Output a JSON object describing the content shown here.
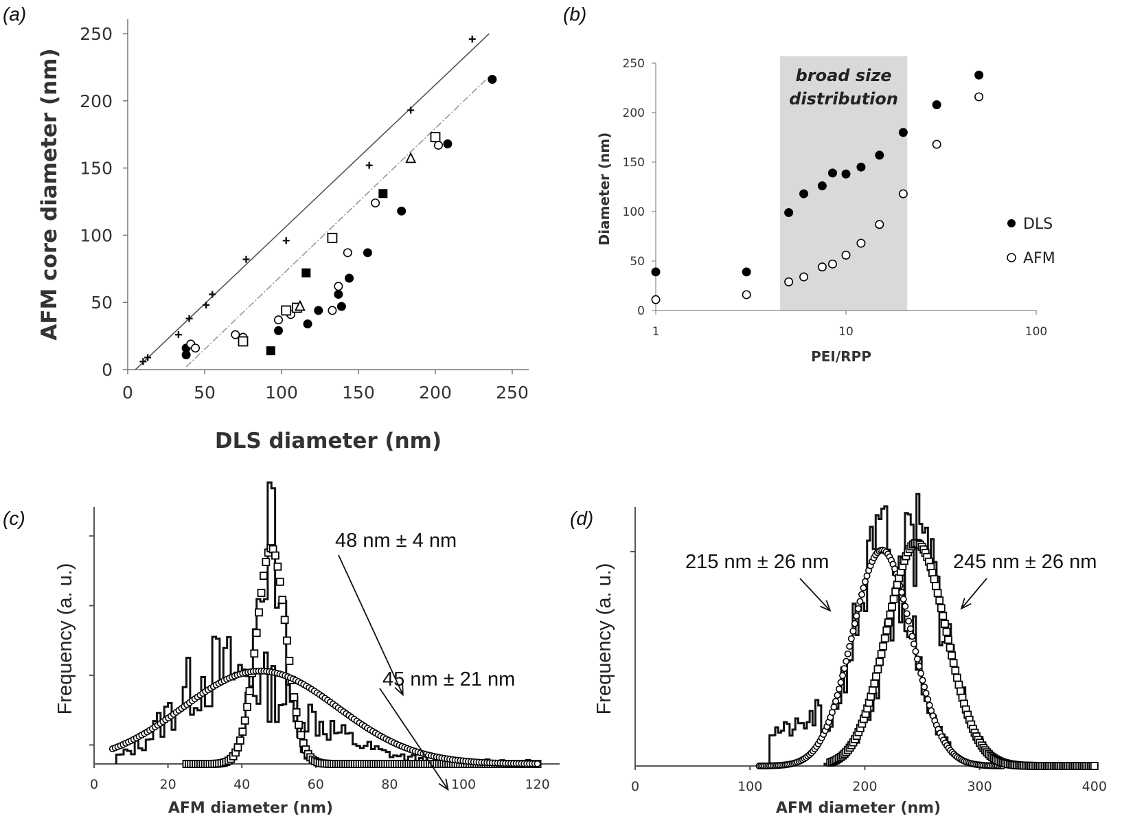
{
  "chart_data": [
    {
      "panel": "(a)",
      "type": "scatter",
      "title": "",
      "xlabel": "DLS diameter (nm)",
      "ylabel": "AFM core diameter (nm)",
      "xlim": [
        0,
        250
      ],
      "ylim": [
        0,
        250
      ],
      "xticks": [
        "0",
        "50",
        "100",
        "150",
        "200",
        "250"
      ],
      "yticks": [
        "0",
        "50",
        "100",
        "150",
        "200",
        "250"
      ],
      "grid": false,
      "lines": [
        {
          "style": "solid",
          "color": "#555555",
          "x": [
            5,
            235
          ],
          "y": [
            0,
            250
          ]
        },
        {
          "style": "dashed",
          "color": "#999999",
          "x": [
            38,
            235
          ],
          "y": [
            2,
            218
          ]
        }
      ],
      "series": [
        {
          "marker": "plus",
          "x": [
            10,
            13,
            33,
            40,
            51,
            55,
            77,
            103,
            157,
            184,
            224
          ],
          "y": [
            6,
            9,
            26,
            38,
            48,
            56,
            82,
            96,
            152,
            193,
            246
          ]
        },
        {
          "marker": "filled-circle",
          "x": [
            38,
            38,
            98,
            117,
            124,
            137,
            139,
            144,
            156,
            178,
            208,
            237
          ],
          "y": [
            11,
            16,
            29,
            34,
            44,
            56,
            47,
            68,
            87,
            118,
            168,
            216
          ]
        },
        {
          "marker": "open-circle",
          "x": [
            41,
            44,
            70,
            75,
            98,
            106,
            133,
            137,
            143,
            161,
            202
          ],
          "y": [
            19,
            16,
            26,
            24,
            37,
            41,
            44,
            62,
            87,
            124,
            167
          ]
        },
        {
          "marker": "open-square",
          "x": [
            75,
            103,
            110,
            133,
            200
          ],
          "y": [
            21,
            44,
            46,
            98,
            173
          ]
        },
        {
          "marker": "filled-square",
          "x": [
            93,
            116,
            166
          ],
          "y": [
            14,
            72,
            131
          ]
        },
        {
          "marker": "open-triangle",
          "x": [
            112,
            184
          ],
          "y": [
            47,
            157
          ]
        }
      ]
    },
    {
      "panel": "(b)",
      "type": "scatter",
      "title": "",
      "xlabel": "PEI/RPP",
      "ylabel": "Diameter (nm)",
      "xscale": "log",
      "xlim": [
        1,
        100
      ],
      "ylim": [
        0,
        250
      ],
      "xticks": [
        "1",
        "10",
        "100"
      ],
      "yticks": [
        "0",
        "50",
        "100",
        "150",
        "200",
        "250"
      ],
      "grid": false,
      "legend": "right",
      "shaded_region": {
        "x": [
          4.5,
          21
        ],
        "label_line1": "broad size",
        "label_line2": "distribution"
      },
      "series": [
        {
          "name": "DLS",
          "marker": "filled-circle",
          "x": [
            1,
            3,
            5,
            6,
            7.5,
            8.5,
            10,
            12,
            15,
            20,
            30,
            50
          ],
          "y": [
            39,
            39,
            99,
            118,
            126,
            139,
            138,
            145,
            157,
            180,
            208,
            238
          ]
        },
        {
          "name": "AFM",
          "marker": "open-circle",
          "x": [
            1,
            3,
            5,
            6,
            7.5,
            8.5,
            10,
            12,
            15,
            20,
            30,
            50
          ],
          "y": [
            11,
            16,
            29,
            34,
            44,
            47,
            56,
            68,
            87,
            118,
            168,
            216
          ]
        }
      ]
    },
    {
      "panel": "(c)",
      "type": "line",
      "title": "",
      "xlabel": "AFM diameter (nm)",
      "ylabel": "Frequency (a. u.)",
      "xlim": [
        0,
        120
      ],
      "ylim": [
        0,
        1.2
      ],
      "xticks": [
        "0",
        "20",
        "40",
        "60",
        "80",
        "100",
        "120"
      ],
      "yticks_labeled": false,
      "fits": [
        {
          "marker": "open-square",
          "mean": 48,
          "sd": 4,
          "amplitude": 0.93,
          "x_from": 25,
          "x_to": 120
        },
        {
          "marker": "open-circle",
          "mean": 45,
          "sd": 21,
          "amplitude": 0.4,
          "x_from": 5,
          "x_to": 120
        }
      ],
      "annotations": [
        {
          "text": "48 nm ± 4 nm",
          "points_to": {
            "x": 52,
            "y": 0.83
          }
        },
        {
          "text": "45 nm ± 21 nm",
          "points_to": {
            "x": 67,
            "y": 0.2
          }
        }
      ]
    },
    {
      "panel": "(d)",
      "type": "line",
      "title": "",
      "xlabel": "AFM diameter (nm)",
      "ylabel": "Frequency (a. u.)",
      "xlim": [
        0,
        400
      ],
      "ylim": [
        0,
        1.2
      ],
      "xticks": [
        "0",
        "100",
        "200",
        "300",
        "400"
      ],
      "yticks_labeled": false,
      "fits": [
        {
          "marker": "open-circle",
          "mean": 215,
          "sd": 26,
          "amplitude": 0.93,
          "x_from": 108,
          "x_to": 320
        },
        {
          "marker": "open-square",
          "mean": 245,
          "sd": 26,
          "amplitude": 0.96,
          "x_from": 170,
          "x_to": 400
        }
      ],
      "annotations": [
        {
          "text": "215 nm ± 26 nm",
          "points_to": {
            "x": 170,
            "y": 0.7
          }
        },
        {
          "text": "245 nm ± 26 nm",
          "points_to": {
            "x": 282,
            "y": 0.7
          }
        }
      ]
    }
  ]
}
